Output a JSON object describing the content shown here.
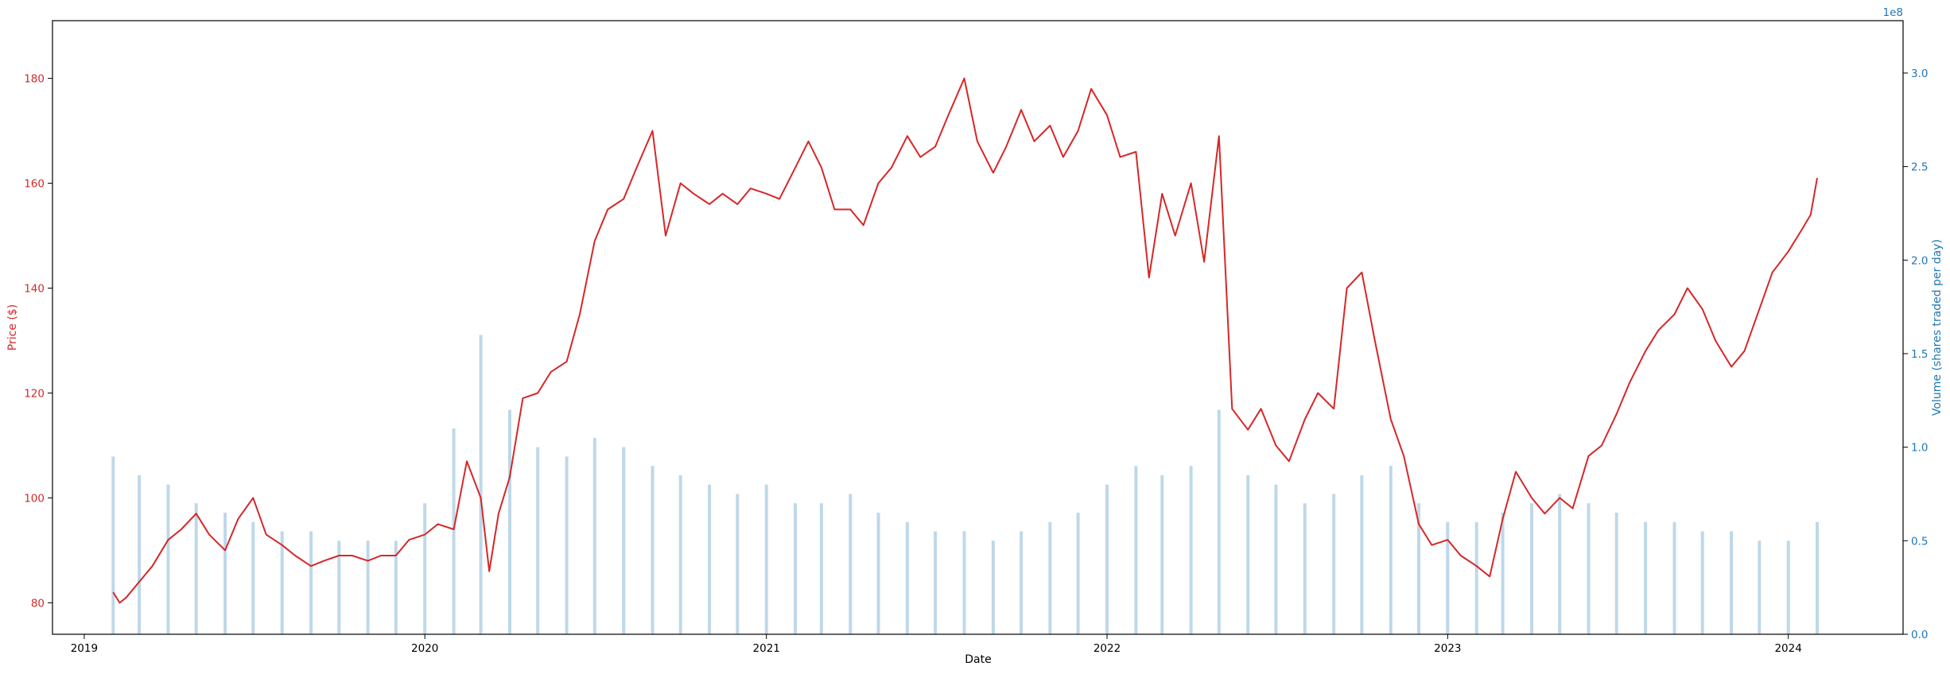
{
  "chart_data": {
    "type": "line",
    "title": "",
    "xlabel": "Date",
    "ylabel": "Price ($)",
    "y2label": "Volume (shares traded per day)",
    "y2_offset_label": "1e8",
    "x_range": [
      "2018-11-28",
      "2024-05-03"
    ],
    "ylim": [
      74,
      191
    ],
    "y2lim": [
      0,
      3.28
    ],
    "x_ticks": [
      "2019",
      "2020",
      "2021",
      "2022",
      "2023",
      "2024"
    ],
    "y_ticks": [
      "80",
      "100",
      "120",
      "140",
      "160",
      "180"
    ],
    "y2_ticks": [
      "0.0",
      "0.5",
      "1.0",
      "1.5",
      "2.0",
      "2.5",
      "3.0"
    ],
    "grid": false,
    "colors": {
      "price": "#d62728",
      "volume": "#1f77b4",
      "volume_bars": "#a8cbe3"
    },
    "series": [
      {
        "type": "line",
        "axis": "left",
        "x": [
          "2019-02-01",
          "2019-02-08",
          "2019-02-15",
          "2019-03-01",
          "2019-03-15",
          "2019-04-01",
          "2019-04-15",
          "2019-05-01",
          "2019-05-15",
          "2019-06-01",
          "2019-06-15",
          "2019-07-01",
          "2019-07-15",
          "2019-08-01",
          "2019-08-15",
          "2019-09-01",
          "2019-09-15",
          "2019-10-01",
          "2019-10-15",
          "2019-11-01",
          "2019-11-15",
          "2019-12-01",
          "2019-12-15",
          "2020-01-01",
          "2020-01-15",
          "2020-02-01",
          "2020-02-15",
          "2020-03-01",
          "2020-03-10",
          "2020-03-20",
          "2020-04-01",
          "2020-04-15",
          "2020-05-01",
          "2020-05-15",
          "2020-06-01",
          "2020-06-15",
          "2020-07-01",
          "2020-07-15",
          "2020-08-01",
          "2020-08-15",
          "2020-09-01",
          "2020-09-15",
          "2020-10-01",
          "2020-10-15",
          "2020-11-01",
          "2020-11-15",
          "2020-12-01",
          "2020-12-15",
          "2021-01-01",
          "2021-01-15",
          "2021-02-01",
          "2021-02-15",
          "2021-03-01",
          "2021-03-15",
          "2021-04-01",
          "2021-04-15",
          "2021-05-01",
          "2021-05-15",
          "2021-06-01",
          "2021-06-15",
          "2021-07-01",
          "2021-07-15",
          "2021-08-01",
          "2021-08-15",
          "2021-09-01",
          "2021-09-15",
          "2021-10-01",
          "2021-10-15",
          "2021-11-01",
          "2021-11-15",
          "2021-12-01",
          "2021-12-15",
          "2022-01-01",
          "2022-01-15",
          "2022-02-01",
          "2022-02-15",
          "2022-03-01",
          "2022-03-15",
          "2022-04-01",
          "2022-04-15",
          "2022-05-01",
          "2022-05-15",
          "2022-06-01",
          "2022-06-15",
          "2022-07-01",
          "2022-07-15",
          "2022-08-01",
          "2022-08-15",
          "2022-09-01",
          "2022-09-15",
          "2022-10-01",
          "2022-10-15",
          "2022-11-01",
          "2022-11-15",
          "2022-12-01",
          "2022-12-15",
          "2023-01-01",
          "2023-01-15",
          "2023-02-01",
          "2023-02-15",
          "2023-03-01",
          "2023-03-15",
          "2023-04-01",
          "2023-04-15",
          "2023-05-01",
          "2023-05-15",
          "2023-06-01",
          "2023-06-15",
          "2023-07-01",
          "2023-07-15",
          "2023-08-01",
          "2023-08-15",
          "2023-09-01",
          "2023-09-15",
          "2023-10-01",
          "2023-10-15",
          "2023-11-01",
          "2023-11-15",
          "2023-12-01",
          "2023-12-15",
          "2024-01-01",
          "2024-01-15",
          "2024-01-25",
          "2024-02-01"
        ],
        "values": [
          82,
          80,
          81,
          84,
          87,
          92,
          94,
          97,
          93,
          90,
          96,
          100,
          93,
          91,
          89,
          87,
          88,
          89,
          89,
          88,
          89,
          89,
          92,
          93,
          95,
          94,
          107,
          100,
          86,
          97,
          104,
          119,
          120,
          124,
          126,
          135,
          149,
          155,
          157,
          163,
          170,
          150,
          160,
          158,
          156,
          158,
          156,
          159,
          158,
          157,
          163,
          168,
          163,
          155,
          155,
          152,
          160,
          163,
          169,
          165,
          167,
          173,
          180,
          168,
          162,
          167,
          174,
          168,
          171,
          165,
          170,
          178,
          173,
          165,
          166,
          142,
          158,
          150,
          160,
          145,
          169,
          117,
          113,
          117,
          110,
          107,
          115,
          120,
          117,
          140,
          143,
          130,
          115,
          108,
          95,
          91,
          92,
          89,
          87,
          85,
          96,
          105,
          100,
          97,
          100,
          98,
          108,
          110,
          116,
          122,
          128,
          132,
          135,
          140,
          136,
          130,
          125,
          128,
          136,
          143,
          147,
          151,
          154,
          161
        ]
      },
      {
        "type": "bar",
        "axis": "right",
        "x": [
          "2019-02-01",
          "2019-03-01",
          "2019-04-01",
          "2019-05-01",
          "2019-06-01",
          "2019-07-01",
          "2019-08-01",
          "2019-09-01",
          "2019-10-01",
          "2019-11-01",
          "2019-12-01",
          "2020-01-01",
          "2020-02-01",
          "2020-03-01",
          "2020-04-01",
          "2020-05-01",
          "2020-06-01",
          "2020-07-01",
          "2020-08-01",
          "2020-09-01",
          "2020-10-01",
          "2020-11-01",
          "2020-12-01",
          "2021-01-01",
          "2021-02-01",
          "2021-03-01",
          "2021-04-01",
          "2021-05-01",
          "2021-06-01",
          "2021-07-01",
          "2021-08-01",
          "2021-09-01",
          "2021-10-01",
          "2021-11-01",
          "2021-12-01",
          "2022-01-01",
          "2022-02-01",
          "2022-03-01",
          "2022-04-01",
          "2022-05-01",
          "2022-06-01",
          "2022-07-01",
          "2022-08-01",
          "2022-09-01",
          "2022-10-01",
          "2022-11-01",
          "2022-12-01",
          "2023-01-01",
          "2023-02-01",
          "2023-03-01",
          "2023-04-01",
          "2023-05-01",
          "2023-06-01",
          "2023-07-01",
          "2023-08-01",
          "2023-09-01",
          "2023-10-01",
          "2023-11-01",
          "2023-12-01",
          "2024-01-01",
          "2024-02-01"
        ],
        "values": [
          0.95,
          0.85,
          0.8,
          0.7,
          0.65,
          0.6,
          0.55,
          0.55,
          0.5,
          0.5,
          0.5,
          0.7,
          1.1,
          1.6,
          1.2,
          1.0,
          0.95,
          1.05,
          1.0,
          0.9,
          0.85,
          0.8,
          0.75,
          0.8,
          0.7,
          0.7,
          0.75,
          0.65,
          0.6,
          0.55,
          0.55,
          0.5,
          0.55,
          0.6,
          0.65,
          0.8,
          0.9,
          0.85,
          0.9,
          1.2,
          0.85,
          0.8,
          0.7,
          0.75,
          0.85,
          0.9,
          0.7,
          0.6,
          0.6,
          0.65,
          0.7,
          0.75,
          0.7,
          0.65,
          0.6,
          0.6,
          0.55,
          0.55,
          0.5,
          0.5,
          0.6
        ]
      }
    ]
  }
}
